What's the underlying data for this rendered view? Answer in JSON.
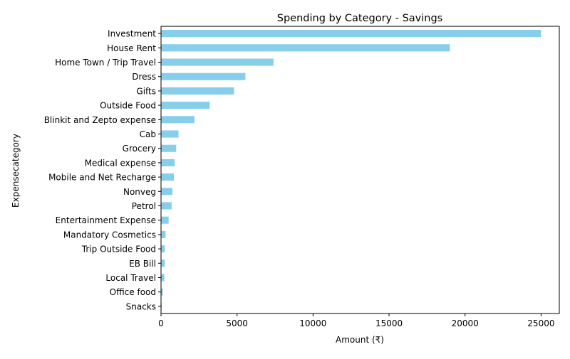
{
  "chart_data": {
    "type": "bar",
    "orientation": "horizontal",
    "title": "Spending by Category - Savings",
    "xlabel": "Amount (₹)",
    "ylabel": "Expensecategory",
    "xlim": [
      0,
      26200
    ],
    "x_ticks": [
      0,
      5000,
      10000,
      15000,
      20000,
      25000
    ],
    "grid": false,
    "bar_color": "#87ceeb",
    "categories": [
      "Investment",
      "House Rent",
      "Home Town / Trip Travel",
      "Dress",
      "Gifts",
      "Outside Food",
      "Blinkit and Zepto expense",
      "Cab",
      "Grocery",
      "Medical expense",
      "Mobile and Net Recharge",
      "Nonveg",
      "Petrol",
      "Entertainment Expense",
      "Mandatory Cosmetics",
      "Trip Outside Food",
      "EB Bill",
      "Local Travel",
      "Office food",
      "Snacks"
    ],
    "values": [
      25000,
      19000,
      7400,
      5550,
      4800,
      3200,
      2200,
      1150,
      1000,
      900,
      850,
      750,
      700,
      500,
      300,
      250,
      250,
      220,
      120,
      40
    ]
  }
}
